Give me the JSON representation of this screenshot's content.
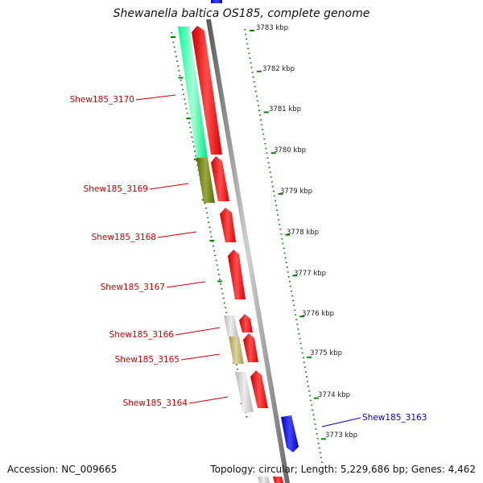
{
  "title": "Shewanella baltica OS185, complete genome",
  "accession": "Accession: NC_009665",
  "summary": "Topology: circular; Length: 5,229,686 bp; Genes: 4,462",
  "scale_labels": [
    "3783 kbp",
    "3782 kbp",
    "3781 kbp",
    "3780 kbp",
    "3779 kbp",
    "3778 kbp",
    "3777 kbp",
    "3776 kbp",
    "3775 kbp",
    "3774 kbp",
    "3773 kbp"
  ],
  "gene_labels": [
    "Shew185_3170",
    "Shew185_3169",
    "Shew185_3168",
    "Shew185_3167",
    "Shew185_3166",
    "Shew185_3165",
    "Shew185_3164",
    "Shew185_3163"
  ],
  "colors": {
    "forward_gene": "#ff0000",
    "reverse_gene": "#0000ff",
    "label_forward": "#cc0000",
    "label_reverse": "#0000cc",
    "scale_ticks": "#008800",
    "backbone": "#888888"
  }
}
